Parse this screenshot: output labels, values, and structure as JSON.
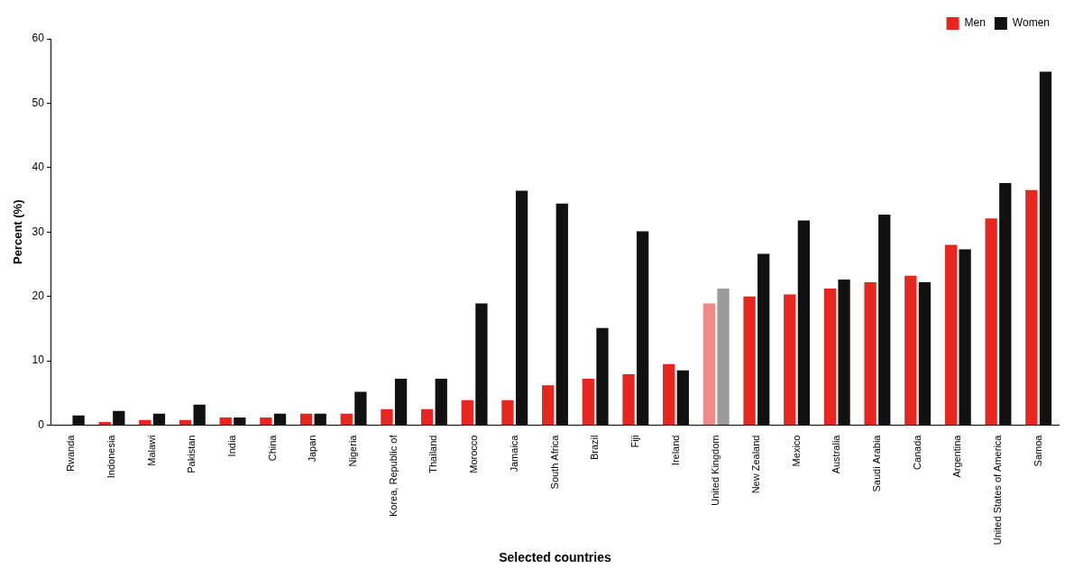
{
  "chart_data": {
    "type": "bar",
    "y_label": "Percent (%)",
    "x_label": "Selected countries",
    "categories": [
      "Rwanda",
      "Indonesia",
      "Malawi",
      "Pakistan",
      "India",
      "China",
      "Japan",
      "Nigeria",
      "Korea, Republic of",
      "Thailand",
      "Morocco",
      "Jamaica",
      "South Africa",
      "Brazil",
      "Fiji",
      "Ireland",
      "United Kingdom",
      "New Zealand",
      "Mexico",
      "Australia",
      "Saudi Arabia",
      "Canada",
      "Argentina",
      "United States of America",
      "Samoa"
    ],
    "series": [
      {
        "name": "Men",
        "color": "#e8251f",
        "colors": [
          "#e8251f",
          "#e8251f",
          "#e8251f",
          "#e8251f",
          "#e8251f",
          "#e8251f",
          "#e8251f",
          "#e8251f",
          "#e8251f",
          "#e8251f",
          "#e8251f",
          "#e8251f",
          "#e8251f",
          "#e8251f",
          "#e8251f",
          "#e8251f",
          "#f08a86",
          "#e8251f",
          "#e8251f",
          "#e8251f",
          "#e8251f",
          "#e8251f",
          "#e8251f",
          "#e8251f",
          "#e8251f"
        ],
        "values": [
          0,
          0.5,
          0.8,
          0.8,
          1.2,
          1.2,
          1.8,
          1.8,
          2.5,
          2.5,
          3.9,
          3.9,
          6.2,
          7.2,
          7.9,
          9.5,
          18.9,
          20.0,
          20.3,
          21.2,
          22.2,
          23.2,
          28.0,
          32.1,
          36.5
        ]
      },
      {
        "name": "Women",
        "color": "#111111",
        "colors": [
          "#111111",
          "#111111",
          "#111111",
          "#111111",
          "#111111",
          "#111111",
          "#111111",
          "#111111",
          "#111111",
          "#111111",
          "#111111",
          "#111111",
          "#111111",
          "#111111",
          "#111111",
          "#111111",
          "#9a9a9a",
          "#111111",
          "#111111",
          "#111111",
          "#111111",
          "#111111",
          "#111111",
          "#111111",
          "#111111"
        ],
        "values": [
          1.5,
          2.2,
          1.8,
          3.2,
          1.2,
          1.8,
          1.8,
          5.2,
          7.2,
          7.2,
          18.9,
          36.4,
          34.4,
          15.1,
          30.1,
          8.5,
          21.2,
          26.6,
          31.8,
          22.6,
          32.7,
          22.2,
          27.3,
          37.6,
          54.9
        ]
      }
    ],
    "ylim": [
      0,
      60
    ],
    "yticks": [
      0,
      10,
      20,
      30,
      40,
      50,
      60
    ],
    "grid": false,
    "legend": "top right"
  }
}
